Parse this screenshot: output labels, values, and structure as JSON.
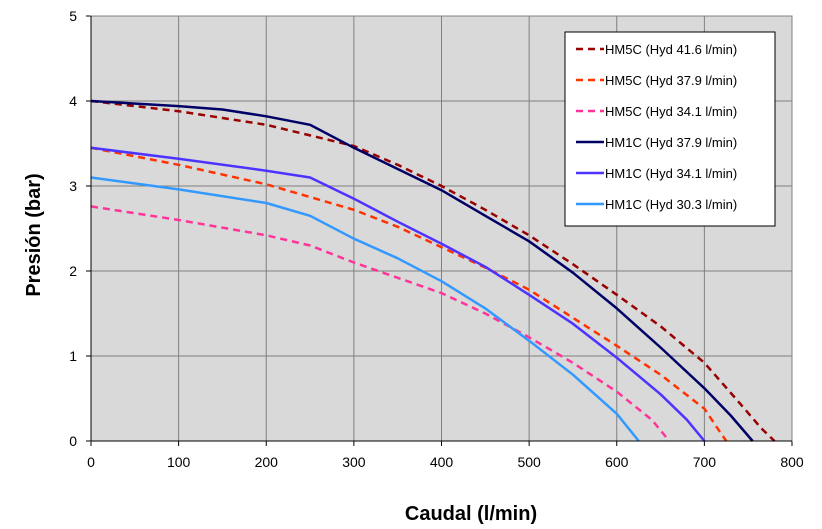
{
  "chart_data": {
    "type": "line",
    "title": "",
    "xlabel": "Caudal (l/min)",
    "ylabel": "Presión (bar)",
    "xlim": [
      0,
      800
    ],
    "ylim": [
      0,
      5
    ],
    "x_ticks": [
      "0",
      "100",
      "200",
      "300",
      "400",
      "500",
      "600",
      "700",
      "800"
    ],
    "y_ticks": [
      "0",
      "1",
      "2",
      "3",
      "4",
      "5"
    ],
    "grid": true,
    "legend_position": "top-right",
    "plot_background": "#d9d9d9",
    "series": [
      {
        "name": "HM5C (Hyd 41.6 l/min)",
        "color": "#990000",
        "dash": "dashed",
        "points": [
          [
            0,
            4.0
          ],
          [
            100,
            3.88
          ],
          [
            200,
            3.72
          ],
          [
            300,
            3.47
          ],
          [
            350,
            3.25
          ],
          [
            400,
            3.0
          ],
          [
            450,
            2.72
          ],
          [
            500,
            2.42
          ],
          [
            550,
            2.08
          ],
          [
            600,
            1.72
          ],
          [
            650,
            1.35
          ],
          [
            700,
            0.92
          ],
          [
            740,
            0.45
          ],
          [
            765,
            0.15
          ],
          [
            780,
            0.0
          ]
        ]
      },
      {
        "name": "HM5C (Hyd 37.9 l/min)",
        "color": "#ff3300",
        "dash": "dashed",
        "points": [
          [
            0,
            3.45
          ],
          [
            100,
            3.25
          ],
          [
            200,
            3.02
          ],
          [
            300,
            2.72
          ],
          [
            350,
            2.52
          ],
          [
            400,
            2.28
          ],
          [
            450,
            2.04
          ],
          [
            500,
            1.78
          ],
          [
            550,
            1.45
          ],
          [
            600,
            1.12
          ],
          [
            650,
            0.78
          ],
          [
            700,
            0.38
          ],
          [
            715,
            0.15
          ],
          [
            725,
            0.0
          ]
        ]
      },
      {
        "name": "HM5C (Hyd 34.1 l/min)",
        "color": "#ff3399",
        "dash": "dashed",
        "points": [
          [
            0,
            2.76
          ],
          [
            100,
            2.6
          ],
          [
            200,
            2.42
          ],
          [
            250,
            2.3
          ],
          [
            300,
            2.1
          ],
          [
            400,
            1.74
          ],
          [
            450,
            1.5
          ],
          [
            500,
            1.22
          ],
          [
            550,
            0.92
          ],
          [
            600,
            0.58
          ],
          [
            640,
            0.25
          ],
          [
            660,
            0.0
          ]
        ]
      },
      {
        "name": "HM1C (Hyd 37.9 l/min)",
        "color": "#000066",
        "dash": "solid",
        "points": [
          [
            0,
            4.0
          ],
          [
            100,
            3.94
          ],
          [
            150,
            3.9
          ],
          [
            200,
            3.82
          ],
          [
            250,
            3.72
          ],
          [
            300,
            3.45
          ],
          [
            350,
            3.2
          ],
          [
            400,
            2.95
          ],
          [
            450,
            2.65
          ],
          [
            500,
            2.35
          ],
          [
            550,
            1.98
          ],
          [
            600,
            1.56
          ],
          [
            650,
            1.1
          ],
          [
            700,
            0.62
          ],
          [
            730,
            0.3
          ],
          [
            755,
            0.0
          ]
        ]
      },
      {
        "name": "HM1C (Hyd 34.1 l/min)",
        "color": "#4d33ff",
        "dash": "solid",
        "points": [
          [
            0,
            3.45
          ],
          [
            100,
            3.32
          ],
          [
            200,
            3.18
          ],
          [
            250,
            3.1
          ],
          [
            300,
            2.85
          ],
          [
            350,
            2.58
          ],
          [
            400,
            2.32
          ],
          [
            450,
            2.05
          ],
          [
            500,
            1.72
          ],
          [
            550,
            1.38
          ],
          [
            600,
            0.98
          ],
          [
            650,
            0.55
          ],
          [
            680,
            0.25
          ],
          [
            700,
            0.0
          ]
        ]
      },
      {
        "name": "HM1C (Hyd 30.3 l/min)",
        "color": "#3399ff",
        "dash": "solid",
        "points": [
          [
            0,
            3.1
          ],
          [
            100,
            2.96
          ],
          [
            200,
            2.8
          ],
          [
            250,
            2.65
          ],
          [
            300,
            2.38
          ],
          [
            350,
            2.15
          ],
          [
            400,
            1.88
          ],
          [
            450,
            1.56
          ],
          [
            500,
            1.18
          ],
          [
            550,
            0.78
          ],
          [
            600,
            0.32
          ],
          [
            625,
            0.0
          ]
        ]
      }
    ]
  }
}
